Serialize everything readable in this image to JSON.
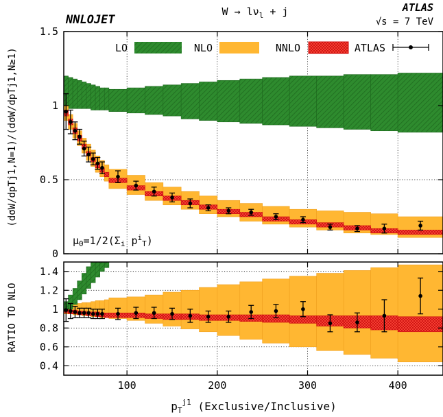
{
  "chart_data": {
    "type": "line",
    "generator": "NNLOJET",
    "process": "W → lν",
    "process_sub": "l",
    "process_suffix": " + j",
    "experiment": "ATLAS",
    "energy_sqrt": "√",
    "energy": "s = 7 TeV",
    "scale_label": "μ",
    "scale_sub": "0",
    "scale_eq": "=1/2(Σ",
    "scale_i": "i",
    "scale_p": " p",
    "scale_sup": "i",
    "scale_T": "T",
    "scale_close": ")",
    "ylabel_top": "(dσW/dpTj1,N=1)/(dσW/dpTj1,N≥1)",
    "ylabel_bottom": "RATIO TO NLO",
    "xlabel_p": "p",
    "xlabel_sub": "T",
    "xlabel_sup": "j1",
    "xlabel_rest": " (Exclusive/Inclusive)",
    "legend": {
      "lo": "LO",
      "nlo": "NLO",
      "nnlo": "NNLO",
      "atlas": "ATLAS"
    },
    "colors": {
      "lo": "#2e8b2e",
      "lo_edge": "#1f6a1f",
      "nlo": "#ffb732",
      "nlo_edge": "#f0a020",
      "nnlo": "#ff3030",
      "nnlo_edge": "#d01010",
      "data": "#000000"
    },
    "x_ticks": [
      "100",
      "200",
      "300",
      "400"
    ],
    "y_ticks_top": [
      "0",
      "0.5",
      "1",
      "1.5"
    ],
    "y_ticks_bottom": [
      "0.4",
      "0.6",
      "0.8",
      "1",
      "1.2",
      "1.4"
    ],
    "xlim": [
      30,
      450
    ],
    "ylim_top": [
      0,
      1.5
    ],
    "ylim_bottom": [
      0.3,
      1.5
    ],
    "bins": [
      30,
      35,
      40,
      45,
      50,
      55,
      60,
      65,
      70,
      75,
      80,
      100,
      120,
      140,
      160,
      180,
      200,
      225,
      250,
      280,
      310,
      340,
      370,
      400,
      450
    ],
    "lo_top": [
      {
        "lo": 0.98,
        "hi": 1.2
      },
      {
        "lo": 0.98,
        "hi": 1.19
      },
      {
        "lo": 0.98,
        "hi": 1.18
      },
      {
        "lo": 0.98,
        "hi": 1.17
      },
      {
        "lo": 0.98,
        "hi": 1.16
      },
      {
        "lo": 0.98,
        "hi": 1.15
      },
      {
        "lo": 0.97,
        "hi": 1.14
      },
      {
        "lo": 0.97,
        "hi": 1.13
      },
      {
        "lo": 0.97,
        "hi": 1.12
      },
      {
        "lo": 0.97,
        "hi": 1.12
      },
      {
        "lo": 0.96,
        "hi": 1.11
      },
      {
        "lo": 0.95,
        "hi": 1.12
      },
      {
        "lo": 0.94,
        "hi": 1.13
      },
      {
        "lo": 0.93,
        "hi": 1.14
      },
      {
        "lo": 0.91,
        "hi": 1.15
      },
      {
        "lo": 0.9,
        "hi": 1.16
      },
      {
        "lo": 0.89,
        "hi": 1.17
      },
      {
        "lo": 0.88,
        "hi": 1.18
      },
      {
        "lo": 0.87,
        "hi": 1.19
      },
      {
        "lo": 0.86,
        "hi": 1.2
      },
      {
        "lo": 0.85,
        "hi": 1.2
      },
      {
        "lo": 0.84,
        "hi": 1.21
      },
      {
        "lo": 0.83,
        "hi": 1.21
      },
      {
        "lo": 0.82,
        "hi": 1.22
      }
    ],
    "nlo_top": [
      {
        "lo": 0.9,
        "hi": 1.0
      },
      {
        "lo": 0.84,
        "hi": 0.94
      },
      {
        "lo": 0.78,
        "hi": 0.88
      },
      {
        "lo": 0.73,
        "hi": 0.83
      },
      {
        "lo": 0.68,
        "hi": 0.78
      },
      {
        "lo": 0.63,
        "hi": 0.74
      },
      {
        "lo": 0.59,
        "hi": 0.7
      },
      {
        "lo": 0.55,
        "hi": 0.66
      },
      {
        "lo": 0.52,
        "hi": 0.63
      },
      {
        "lo": 0.49,
        "hi": 0.6
      },
      {
        "lo": 0.44,
        "hi": 0.57
      },
      {
        "lo": 0.4,
        "hi": 0.53
      },
      {
        "lo": 0.36,
        "hi": 0.48
      },
      {
        "lo": 0.33,
        "hi": 0.45
      },
      {
        "lo": 0.3,
        "hi": 0.42
      },
      {
        "lo": 0.27,
        "hi": 0.39
      },
      {
        "lo": 0.25,
        "hi": 0.36
      },
      {
        "lo": 0.22,
        "hi": 0.34
      },
      {
        "lo": 0.2,
        "hi": 0.32
      },
      {
        "lo": 0.18,
        "hi": 0.3
      },
      {
        "lo": 0.16,
        "hi": 0.29
      },
      {
        "lo": 0.14,
        "hi": 0.28
      },
      {
        "lo": 0.13,
        "hi": 0.27
      },
      {
        "lo": 0.11,
        "hi": 0.25
      }
    ],
    "nnlo_top": [
      {
        "lo": 0.93,
        "hi": 0.97
      },
      {
        "lo": 0.87,
        "hi": 0.91
      },
      {
        "lo": 0.81,
        "hi": 0.85
      },
      {
        "lo": 0.76,
        "hi": 0.8
      },
      {
        "lo": 0.71,
        "hi": 0.74
      },
      {
        "lo": 0.66,
        "hi": 0.69
      },
      {
        "lo": 0.62,
        "hi": 0.65
      },
      {
        "lo": 0.58,
        "hi": 0.61
      },
      {
        "lo": 0.55,
        "hi": 0.58
      },
      {
        "lo": 0.52,
        "hi": 0.55
      },
      {
        "lo": 0.48,
        "hi": 0.51
      },
      {
        "lo": 0.43,
        "hi": 0.46
      },
      {
        "lo": 0.39,
        "hi": 0.42
      },
      {
        "lo": 0.36,
        "hi": 0.39
      },
      {
        "lo": 0.33,
        "hi": 0.36
      },
      {
        "lo": 0.3,
        "hi": 0.33
      },
      {
        "lo": 0.27,
        "hi": 0.3
      },
      {
        "lo": 0.25,
        "hi": 0.28
      },
      {
        "lo": 0.22,
        "hi": 0.25
      },
      {
        "lo": 0.2,
        "hi": 0.23
      },
      {
        "lo": 0.18,
        "hi": 0.21
      },
      {
        "lo": 0.16,
        "hi": 0.19
      },
      {
        "lo": 0.14,
        "hi": 0.17
      },
      {
        "lo": 0.13,
        "hi": 0.16
      }
    ],
    "data_top": [
      {
        "x": 32.5,
        "y": 0.96,
        "err": 0.12
      },
      {
        "x": 37.5,
        "y": 0.89,
        "err": 0.08
      },
      {
        "x": 42.5,
        "y": 0.83,
        "err": 0.06
      },
      {
        "x": 47.5,
        "y": 0.79,
        "err": 0.05
      },
      {
        "x": 52.5,
        "y": 0.71,
        "err": 0.05
      },
      {
        "x": 57.5,
        "y": 0.67,
        "err": 0.05
      },
      {
        "x": 62.5,
        "y": 0.64,
        "err": 0.04
      },
      {
        "x": 67.5,
        "y": 0.61,
        "err": 0.04
      },
      {
        "x": 72.5,
        "y": 0.58,
        "err": 0.04
      },
      {
        "x": 90,
        "y": 0.52,
        "err": 0.04
      },
      {
        "x": 110,
        "y": 0.46,
        "err": 0.03
      },
      {
        "x": 130,
        "y": 0.42,
        "err": 0.03
      },
      {
        "x": 150,
        "y": 0.38,
        "err": 0.03
      },
      {
        "x": 170,
        "y": 0.34,
        "err": 0.03
      },
      {
        "x": 190,
        "y": 0.31,
        "err": 0.02
      },
      {
        "x": 212.5,
        "y": 0.29,
        "err": 0.02
      },
      {
        "x": 237.5,
        "y": 0.28,
        "err": 0.02
      },
      {
        "x": 265,
        "y": 0.25,
        "err": 0.02
      },
      {
        "x": 295,
        "y": 0.23,
        "err": 0.02
      },
      {
        "x": 325,
        "y": 0.18,
        "err": 0.02
      },
      {
        "x": 355,
        "y": 0.17,
        "err": 0.02
      },
      {
        "x": 385,
        "y": 0.17,
        "err": 0.03
      },
      {
        "x": 425,
        "y": 0.19,
        "err": 0.03
      }
    ],
    "lo_ratio": [
      {
        "lo": 0.96,
        "hi": 1.08
      },
      {
        "lo": 1.0,
        "hi": 1.15
      },
      {
        "lo": 1.05,
        "hi": 1.22
      },
      {
        "lo": 1.1,
        "hi": 1.3
      },
      {
        "lo": 1.16,
        "hi": 1.38
      },
      {
        "lo": 1.22,
        "hi": 1.45
      },
      {
        "lo": 1.28,
        "hi": 1.5
      },
      {
        "lo": 1.34,
        "hi": 1.5
      },
      {
        "lo": 1.4,
        "hi": 1.5
      },
      {
        "lo": 1.44,
        "hi": 1.5
      }
    ],
    "nlo_ratio": [
      {
        "lo": 0.95,
        "hi": 1.05
      },
      {
        "lo": 0.95,
        "hi": 1.05
      },
      {
        "lo": 0.94,
        "hi": 1.06
      },
      {
        "lo": 0.94,
        "hi": 1.06
      },
      {
        "lo": 0.93,
        "hi": 1.07
      },
      {
        "lo": 0.93,
        "hi": 1.07
      },
      {
        "lo": 0.92,
        "hi": 1.08
      },
      {
        "lo": 0.92,
        "hi": 1.09
      },
      {
        "lo": 0.91,
        "hi": 1.09
      },
      {
        "lo": 0.91,
        "hi": 1.1
      },
      {
        "lo": 0.9,
        "hi": 1.12
      },
      {
        "lo": 0.88,
        "hi": 1.13
      },
      {
        "lo": 0.85,
        "hi": 1.15
      },
      {
        "lo": 0.82,
        "hi": 1.18
      },
      {
        "lo": 0.79,
        "hi": 1.2
      },
      {
        "lo": 0.76,
        "hi": 1.23
      },
      {
        "lo": 0.72,
        "hi": 1.26
      },
      {
        "lo": 0.68,
        "hi": 1.29
      },
      {
        "lo": 0.64,
        "hi": 1.32
      },
      {
        "lo": 0.6,
        "hi": 1.35
      },
      {
        "lo": 0.56,
        "hi": 1.38
      },
      {
        "lo": 0.52,
        "hi": 1.41
      },
      {
        "lo": 0.48,
        "hi": 1.44
      },
      {
        "lo": 0.44,
        "hi": 1.47
      }
    ],
    "nnlo_ratio": [
      {
        "lo": 0.96,
        "hi": 1.0
      },
      {
        "lo": 0.95,
        "hi": 0.99
      },
      {
        "lo": 0.95,
        "hi": 0.99
      },
      {
        "lo": 0.94,
        "hi": 0.98
      },
      {
        "lo": 0.94,
        "hi": 0.98
      },
      {
        "lo": 0.93,
        "hi": 0.97
      },
      {
        "lo": 0.93,
        "hi": 0.97
      },
      {
        "lo": 0.92,
        "hi": 0.97
      },
      {
        "lo": 0.92,
        "hi": 0.96
      },
      {
        "lo": 0.91,
        "hi": 0.96
      },
      {
        "lo": 0.91,
        "hi": 0.96
      },
      {
        "lo": 0.91,
        "hi": 0.96
      },
      {
        "lo": 0.9,
        "hi": 0.95
      },
      {
        "lo": 0.89,
        "hi": 0.95
      },
      {
        "lo": 0.89,
        "hi": 0.95
      },
      {
        "lo": 0.88,
        "hi": 0.94
      },
      {
        "lo": 0.88,
        "hi": 0.94
      },
      {
        "lo": 0.87,
        "hi": 0.94
      },
      {
        "lo": 0.86,
        "hi": 0.94
      },
      {
        "lo": 0.85,
        "hi": 0.93
      },
      {
        "lo": 0.82,
        "hi": 0.93
      },
      {
        "lo": 0.8,
        "hi": 0.93
      },
      {
        "lo": 0.78,
        "hi": 0.93
      },
      {
        "lo": 0.76,
        "hi": 0.92
      }
    ],
    "data_ratio": [
      {
        "x": 32.5,
        "y": 0.99,
        "err": 0.12
      },
      {
        "x": 37.5,
        "y": 0.98,
        "err": 0.08
      },
      {
        "x": 42.5,
        "y": 0.97,
        "err": 0.06
      },
      {
        "x": 47.5,
        "y": 0.96,
        "err": 0.05
      },
      {
        "x": 52.5,
        "y": 0.96,
        "err": 0.05
      },
      {
        "x": 57.5,
        "y": 0.96,
        "err": 0.05
      },
      {
        "x": 62.5,
        "y": 0.95,
        "err": 0.05
      },
      {
        "x": 67.5,
        "y": 0.95,
        "err": 0.05
      },
      {
        "x": 72.5,
        "y": 0.95,
        "err": 0.05
      },
      {
        "x": 90,
        "y": 0.95,
        "err": 0.06
      },
      {
        "x": 110,
        "y": 0.96,
        "err": 0.06
      },
      {
        "x": 130,
        "y": 0.96,
        "err": 0.06
      },
      {
        "x": 150,
        "y": 0.95,
        "err": 0.06
      },
      {
        "x": 170,
        "y": 0.93,
        "err": 0.07
      },
      {
        "x": 190,
        "y": 0.92,
        "err": 0.06
      },
      {
        "x": 212.5,
        "y": 0.92,
        "err": 0.06
      },
      {
        "x": 237.5,
        "y": 0.97,
        "err": 0.07
      },
      {
        "x": 265,
        "y": 0.98,
        "err": 0.07
      },
      {
        "x": 295,
        "y": 1.0,
        "err": 0.08
      },
      {
        "x": 325,
        "y": 0.85,
        "err": 0.09
      },
      {
        "x": 355,
        "y": 0.86,
        "err": 0.1
      },
      {
        "x": 385,
        "y": 0.93,
        "err": 0.17
      },
      {
        "x": 425,
        "y": 1.14,
        "err": 0.19
      }
    ]
  }
}
